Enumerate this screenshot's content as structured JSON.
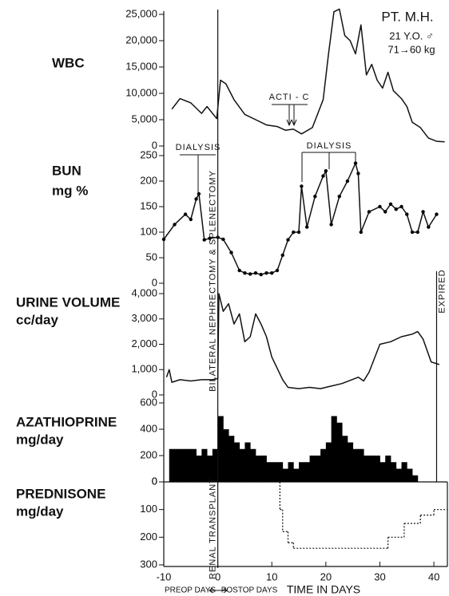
{
  "chart_data": [
    {
      "type": "line",
      "ylabel": "WBC",
      "color": "#000000",
      "x": [
        -8.5,
        -7,
        -5,
        -3,
        -2,
        -0.2,
        0.5,
        1.5,
        3,
        5,
        7,
        9,
        11,
        12.5,
        14,
        15.5,
        17.5,
        19.5,
        20.5,
        21.5,
        22.5,
        23.5,
        24.5,
        25.5,
        26.5,
        27.5,
        28.5,
        29.5,
        30.5,
        31.5,
        32.5,
        34,
        35,
        36,
        37.5,
        39,
        40.5,
        42
      ],
      "values": [
        7000,
        9000,
        8200,
        6200,
        7500,
        5200,
        12500,
        11800,
        8800,
        6000,
        5000,
        4000,
        3700,
        3000,
        3200,
        2300,
        3500,
        8800,
        17500,
        25500,
        26000,
        21000,
        20000,
        17500,
        23000,
        13500,
        15500,
        12500,
        11000,
        14000,
        10500,
        9000,
        7500,
        4500,
        3500,
        1500,
        900,
        800
      ],
      "xlim": [
        -10,
        42.5
      ],
      "ylim": [
        0,
        25000
      ],
      "yticks": [
        0,
        {
          "value": 5000,
          "label": "5,000"
        },
        {
          "value": 10000,
          "label": "10,000"
        },
        {
          "value": 15000,
          "label": "15,000"
        },
        {
          "value": 20000,
          "label": "20,000"
        },
        {
          "value": 25000,
          "label": "25,000"
        }
      ],
      "grid": false,
      "annotations": [
        "PT. M.H.",
        "21 Y.O. ♂",
        "71→60 kg",
        "ACTI - C"
      ]
    },
    {
      "type": "line",
      "ylabel": "BUN",
      "yunit": "mg %",
      "color": "#000000",
      "markers": true,
      "x": [
        -10,
        -8,
        -6,
        -5,
        -4,
        -3.5,
        -2.5,
        -1.5,
        0,
        1,
        2.5,
        4,
        5,
        6,
        7,
        8,
        9,
        10,
        11,
        12,
        13,
        14,
        15,
        15.5,
        16.5,
        18,
        19.5,
        20,
        21,
        22.5,
        24,
        25.5,
        26,
        26.5,
        28,
        30,
        31,
        32,
        33,
        34,
        35,
        36,
        37,
        38,
        39,
        40.5
      ],
      "values": [
        86,
        115,
        135,
        125,
        165,
        175,
        85,
        88,
        90,
        86,
        60,
        25,
        20,
        18,
        20,
        17,
        20,
        20,
        25,
        55,
        85,
        100,
        100,
        190,
        110,
        170,
        210,
        220,
        115,
        170,
        200,
        235,
        215,
        100,
        140,
        150,
        140,
        155,
        145,
        150,
        135,
        100,
        100,
        140,
        110,
        135
      ],
      "xlim": [
        -10,
        42.5
      ],
      "ylim": [
        0,
        250
      ],
      "yticks": [
        0,
        50,
        100,
        150,
        200,
        250
      ],
      "grid": false,
      "annotations": [
        "DIALYSIS",
        "DIALYSIS"
      ]
    },
    {
      "type": "line",
      "ylabel": "URINE VOLUME",
      "yunit": "cc/day",
      "color": "#000000",
      "x": [
        -9.5,
        -9,
        -8.5,
        -7,
        -5,
        -3,
        -1,
        0,
        0.2,
        1,
        2,
        3,
        4,
        5,
        6,
        7,
        8,
        9,
        10,
        12,
        13,
        15,
        17,
        19,
        21,
        23,
        26,
        27,
        28,
        30,
        32,
        34,
        36,
        37,
        38,
        39.5,
        41
      ],
      "values": [
        700,
        1000,
        500,
        600,
        550,
        600,
        600,
        650,
        4000,
        3300,
        3600,
        2800,
        3200,
        2100,
        2300,
        3200,
        2800,
        2300,
        1500,
        600,
        300,
        250,
        300,
        250,
        350,
        450,
        700,
        550,
        900,
        2000,
        2100,
        2300,
        2400,
        2500,
        2200,
        1300,
        1200
      ],
      "xlim": [
        -10,
        42.5
      ],
      "ylim": [
        0,
        4000
      ],
      "yticks": [
        0,
        {
          "value": 1000,
          "label": "1,000"
        },
        {
          "value": 2000,
          "label": "2,000"
        },
        {
          "value": 3000,
          "label": "3,000"
        },
        {
          "value": 4000,
          "label": "4,000"
        }
      ],
      "grid": false
    },
    {
      "type": "histogram",
      "ylabel": "AZATHIOPRINE",
      "yunit": "mg/day",
      "color": "#000000",
      "bins": [
        -9,
        -8,
        -7,
        -6,
        -5,
        -4,
        -3,
        -2,
        -1,
        0,
        1,
        2,
        3,
        4,
        5,
        6,
        7,
        8,
        9,
        10,
        11,
        12,
        13,
        14,
        15,
        16,
        17,
        18,
        19,
        20,
        21,
        22,
        23,
        24,
        25,
        26,
        27,
        28,
        29,
        30,
        31,
        32,
        33,
        34,
        35,
        36,
        37
      ],
      "values": [
        250,
        250,
        250,
        250,
        250,
        200,
        250,
        200,
        250,
        500,
        400,
        350,
        300,
        250,
        300,
        250,
        200,
        200,
        150,
        150,
        150,
        100,
        150,
        100,
        150,
        150,
        200,
        200,
        250,
        300,
        500,
        450,
        350,
        300,
        250,
        250,
        200,
        200,
        200,
        150,
        200,
        150,
        100,
        150,
        100,
        50
      ],
      "xlim": [
        -10,
        42.5
      ],
      "ylim": [
        0,
        600
      ],
      "yticks": [
        0,
        200,
        400,
        600
      ],
      "grid": false
    },
    {
      "type": "step",
      "ylabel": "PREDNISONE",
      "yunit": "mg/day",
      "color": "#000000",
      "y_inverted": true,
      "x": [
        -9,
        11.5,
        12,
        13,
        14,
        31.5,
        34.5,
        37.5,
        40
      ],
      "values": [
        0,
        100,
        180,
        220,
        240,
        200,
        150,
        120,
        100
      ],
      "xlim": [
        -10,
        42.5
      ],
      "ylim": [
        0,
        300
      ],
      "yticks": [
        0,
        100,
        200,
        300
      ],
      "grid": false,
      "xticks": [
        -10,
        0,
        10,
        20,
        30,
        40
      ],
      "xlabel": "TIME IN DAYS",
      "annotations": [
        "PREOP DAYS",
        "POSTOP DAYS"
      ],
      "events": [
        {
          "day": 0,
          "labels": [
            "BILATERAL NEPHRECTOMY & SPLENECTOMY",
            "RENAL TRANSPLANT"
          ]
        },
        {
          "day": 40.5,
          "labels": [
            "EXPIRED"
          ]
        }
      ]
    }
  ]
}
